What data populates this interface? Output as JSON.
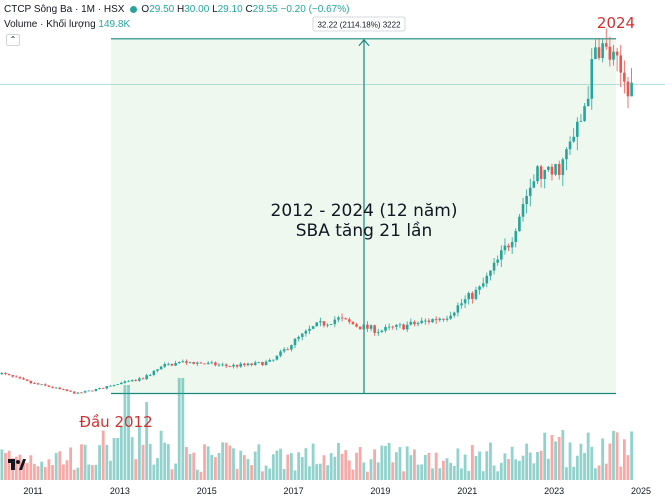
{
  "header": {
    "symbol": "CTCP Sông Ba · 1M · HSX",
    "open_label": "O",
    "open": "29.50",
    "high_label": "H",
    "high": "30.00",
    "low_label": "L",
    "low": "29.10",
    "close_label": "C",
    "close": "29.55",
    "change": "−0.20 (−0.67%)",
    "volume_label": "Volume · Khối lượng",
    "volume": "149.8K"
  },
  "colors": {
    "up": "#26a69a",
    "down": "#ef5350",
    "annotation": "#d32f2f",
    "range_line": "#18877e",
    "range_fill": "#e8f5ea"
  },
  "chart_data": {
    "type": "candlestick",
    "title": "CTCP Sông Ba · 1M · HSX",
    "x_ticks": [
      "2011",
      "2013",
      "2015",
      "2017",
      "2019",
      "2021",
      "2023",
      "2025"
    ],
    "y_range": [
      0,
      33
    ],
    "measure": {
      "start": "2012",
      "end": "2024",
      "start_price": 1.5,
      "end_price": 33.7,
      "label": "32.22 (2114.18%) 3222"
    },
    "annotations": {
      "top": "2024",
      "bottom": "Đầu 2012",
      "center_line1": "2012 - 2024 (12 năm)",
      "center_line2": "SBA tăng 21 lần"
    },
    "price_points": [
      [
        2010.2,
        3.4
      ],
      [
        2010.6,
        2.9
      ],
      [
        2011.0,
        2.4
      ],
      [
        2011.4,
        2.1
      ],
      [
        2011.8,
        1.7
      ],
      [
        2012.0,
        1.5
      ],
      [
        2012.5,
        1.9
      ],
      [
        2013.0,
        2.4
      ],
      [
        2013.5,
        2.8
      ],
      [
        2014.0,
        4.0
      ],
      [
        2014.5,
        4.4
      ],
      [
        2015.0,
        4.2
      ],
      [
        2015.5,
        4.0
      ],
      [
        2016.0,
        4.1
      ],
      [
        2016.5,
        4.4
      ],
      [
        2017.0,
        6.2
      ],
      [
        2017.5,
        7.6
      ],
      [
        2018.0,
        8.3
      ],
      [
        2018.5,
        7.6
      ],
      [
        2019.0,
        7.2
      ],
      [
        2019.5,
        7.6
      ],
      [
        2020.0,
        8.0
      ],
      [
        2020.5,
        8.5
      ],
      [
        2020.9,
        9.8
      ],
      [
        2021.3,
        11.0
      ],
      [
        2021.7,
        13.5
      ],
      [
        2022.0,
        15.5
      ],
      [
        2022.3,
        19.0
      ],
      [
        2022.6,
        21.5
      ],
      [
        2022.9,
        21.2
      ],
      [
        2023.2,
        22.5
      ],
      [
        2023.6,
        26.0
      ],
      [
        2023.8,
        29.5
      ],
      [
        2024.0,
        33.4
      ],
      [
        2024.3,
        32.0
      ],
      [
        2024.6,
        30.0
      ],
      [
        2024.8,
        29.55
      ]
    ],
    "volume_series": "monthly volume bars (relative), spikes around 2013-2014"
  }
}
